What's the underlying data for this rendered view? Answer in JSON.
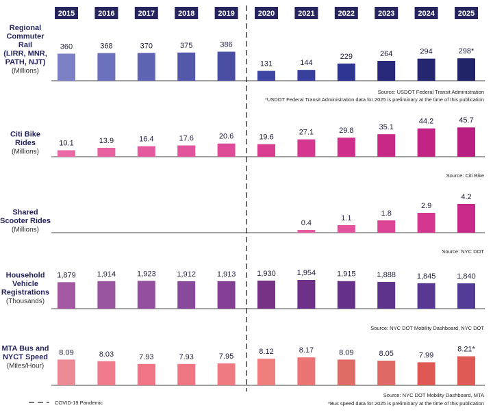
{
  "years": [
    "2015",
    "2016",
    "2017",
    "2018",
    "2019",
    "2020",
    "2021",
    "2022",
    "2023",
    "2024",
    "2025"
  ],
  "legend": {
    "label": "COVID-19 Pandemic"
  },
  "chart_data": [
    {
      "type": "bar",
      "title_lines": [
        "Regional",
        "Commuter",
        "Rail",
        "(LIRR, MNR,",
        "PATH, NJT)"
      ],
      "unit": "(Millions)",
      "categories": [
        "2015",
        "2016",
        "2017",
        "2018",
        "2019",
        "2020",
        "2021",
        "2022",
        "2023",
        "2024",
        "2025"
      ],
      "values": [
        360,
        368,
        370,
        375,
        386,
        131,
        144,
        229,
        264,
        294,
        298
      ],
      "labels": [
        "360",
        "368",
        "370",
        "375",
        "386",
        "131",
        "144",
        "229",
        "264",
        "294",
        "298*"
      ],
      "ylim": [
        0,
        400
      ],
      "colors": [
        "#7c80c4",
        "#6c71bd",
        "#5f64b3",
        "#5358aa",
        "#4a4fa3",
        "#3e45a2",
        "#383f9d",
        "#2e3592",
        "#27287a",
        "#242670",
        "#22246a"
      ],
      "sources": [
        "Source: USDOT Federal Transit Administration",
        "*USDOT Federal Transit Administration data for 2025 is preliminary at the time of this publication"
      ]
    },
    {
      "type": "bar",
      "title_lines": [
        "Citi Bike",
        "Rides"
      ],
      "unit": "(Millions)",
      "categories": [
        "2015",
        "2016",
        "2017",
        "2018",
        "2019",
        "2020",
        "2021",
        "2022",
        "2023",
        "2024",
        "2025"
      ],
      "values": [
        10.1,
        13.9,
        16.4,
        17.6,
        20.6,
        19.6,
        27.1,
        29.8,
        35.1,
        44.2,
        45.7
      ],
      "labels": [
        "10.1",
        "13.9",
        "16.4",
        "17.6",
        "20.6",
        "19.6",
        "27.1",
        "29.8",
        "35.1",
        "44.2",
        "45.7"
      ],
      "ylim": [
        0,
        47
      ],
      "colors": [
        "#ea6aa6",
        "#e862a2",
        "#e55a9e",
        "#e2549b",
        "#de4c97",
        "#d93e91",
        "#d5378e",
        "#cf2f8a",
        "#c92986",
        "#c22484",
        "#b81f80"
      ],
      "sources": [
        "Source: Citi Bike"
      ]
    },
    {
      "type": "bar",
      "title_lines": [
        "Shared",
        "Scooter Rides"
      ],
      "unit": "(Millions)",
      "categories": [
        "2015",
        "2016",
        "2017",
        "2018",
        "2019",
        "2020",
        "2021",
        "2022",
        "2023",
        "2024",
        "2025"
      ],
      "values": [
        null,
        null,
        null,
        null,
        null,
        null,
        0.4,
        1.1,
        1.8,
        2.9,
        4.2
      ],
      "labels": [
        "",
        "",
        "",
        "",
        "",
        "",
        "0.4",
        "1.1",
        "1.8",
        "2.9",
        "4.2"
      ],
      "ylim": [
        0,
        4.4
      ],
      "colors": [
        "#e85aa0",
        "#e85aa0",
        "#e85aa0",
        "#e85aa0",
        "#e85aa0",
        "#e85aa0",
        "#ea5ca2",
        "#e4519c",
        "#dc4496",
        "#d33790",
        "#c72a89"
      ],
      "sources": [
        "Source: NYC DOT"
      ]
    },
    {
      "type": "bar",
      "title_lines": [
        "Household",
        "Vehicle",
        "Registrations"
      ],
      "unit": "(Thousands)",
      "categories": [
        "2015",
        "2016",
        "2017",
        "2018",
        "2019",
        "2020",
        "2021",
        "2022",
        "2023",
        "2024",
        "2025"
      ],
      "values": [
        1879,
        1914,
        1923,
        1912,
        1913,
        1930,
        1954,
        1915,
        1888,
        1845,
        1840
      ],
      "labels": [
        "1,879",
        "1,914",
        "1,923",
        "1,912",
        "1,913",
        "1,930",
        "1,954",
        "1,915",
        "1,888",
        "1,845",
        "1,840"
      ],
      "ylim": [
        1000,
        2000
      ],
      "colors": [
        "#a35aa3",
        "#9a55a0",
        "#93509e",
        "#8a4a9b",
        "#823f93",
        "#763386",
        "#6e3088",
        "#65318a",
        "#5e348d",
        "#583893",
        "#533c98"
      ],
      "sources": [
        "Source: NYC DOT Mobility Dashboard, NYC DOT"
      ]
    },
    {
      "type": "bar",
      "title_lines": [
        "MTA Bus and",
        "NYCT Speed"
      ],
      "unit": "(Miles/Hour)",
      "categories": [
        "2015",
        "2016",
        "2017",
        "2018",
        "2019",
        "2020",
        "2021",
        "2022",
        "2023",
        "2024",
        "2025"
      ],
      "values": [
        8.09,
        8.03,
        7.93,
        7.93,
        7.95,
        8.12,
        8.17,
        8.09,
        8.05,
        7.99,
        8.21
      ],
      "labels": [
        "8.09",
        "8.03",
        "7.93",
        "7.93",
        "7.95",
        "8.12",
        "8.17",
        "8.09",
        "8.05",
        "7.99",
        "8.21*"
      ],
      "ylim": [
        7.15,
        8.25
      ],
      "colors": [
        "#ec8a95",
        "#ee7a8c",
        "#ef7585",
        "#ef7583",
        "#ef7a82",
        "#f07e7d",
        "#ea7574",
        "#e06c66",
        "#e06a66",
        "#e05853",
        "#e05a55"
      ],
      "sources": [
        "Source: NYC DOT Mobility Dashboard, MTA",
        "*Bus speed data for 2025 is preliminary at the time of this publication"
      ]
    }
  ]
}
